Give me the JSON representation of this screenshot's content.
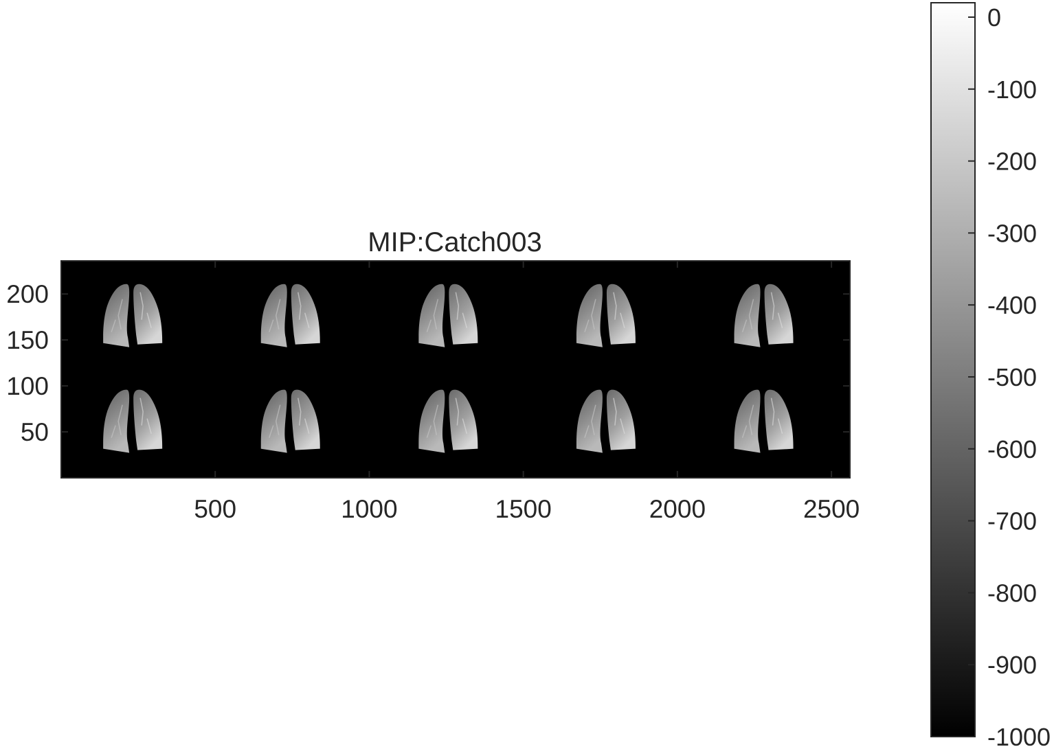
{
  "chart_data": {
    "type": "heatmap",
    "title": "MIP:Catch003",
    "xlabel": "",
    "ylabel": "",
    "xlim": [
      0,
      2560
    ],
    "ylim": [
      0,
      236
    ],
    "y_direction": "normal",
    "x_ticks": [
      500,
      1000,
      1500,
      2000,
      2500
    ],
    "y_ticks": [
      50,
      100,
      150,
      200
    ],
    "grid": false,
    "colormap": "gray",
    "background_color": "#000000",
    "panels": {
      "rows": 2,
      "columns": 5,
      "content": "lung maximum intensity projection",
      "column_centers": [
        230,
        742,
        1254,
        1766,
        2278
      ],
      "row_centers": [
        172,
        57
      ]
    },
    "colorbar": {
      "location": "right",
      "limits": [
        -1000,
        20
      ],
      "ticks": [
        0,
        -100,
        -200,
        -300,
        -400,
        -500,
        -600,
        -700,
        -800,
        -900,
        -1000
      ]
    }
  },
  "colors": {
    "axis": "#262626",
    "image_background": "#000000",
    "colormap_low": "#000000",
    "colormap_high": "#ffffff"
  }
}
